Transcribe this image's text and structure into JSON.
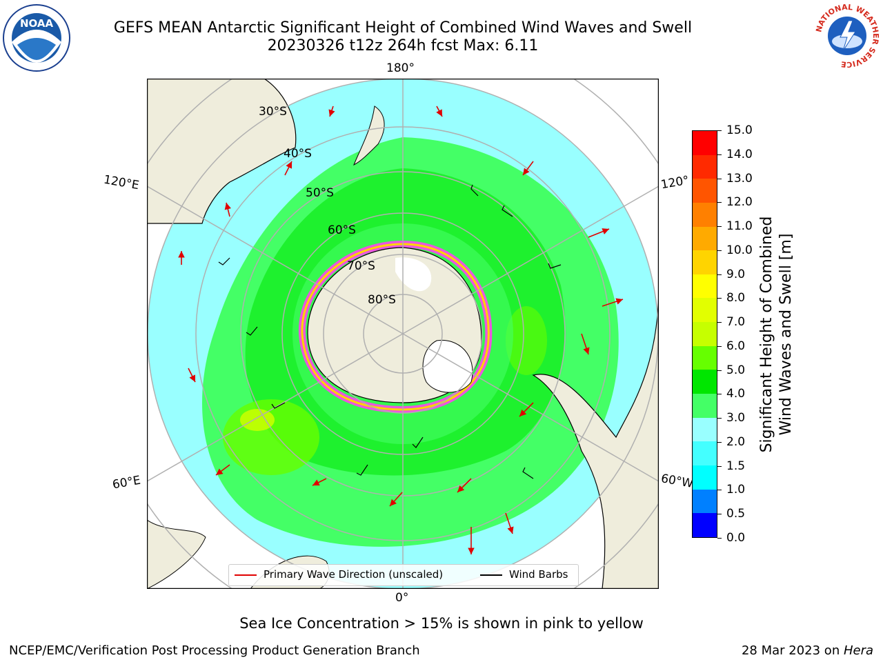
{
  "header": {
    "title_line1": "GEFS MEAN Antarctic Significant Height of Combined Wind Waves and Swell",
    "title_line2": "20230326 t12z 264h fcst   Max: 6.11"
  },
  "map": {
    "lon_labels": {
      "top": "180°",
      "bottom": "0°",
      "left_upper": "120°E",
      "left_lower": "60°E",
      "right_upper": "120°",
      "right_lower": "60°W"
    },
    "lat_labels": [
      "30°S",
      "40°S",
      "50°S",
      "60°S",
      "70°S",
      "80°S"
    ]
  },
  "legend": {
    "primary_wave": "Primary Wave Direction (unscaled)",
    "wind_barbs": "Wind Barbs"
  },
  "colorbar": {
    "label_line1": "Significant Height of Combined",
    "label_line2": "Wind Waves and Swell [m]",
    "ticks": [
      "15.0",
      "14.0",
      "13.0",
      "12.0",
      "11.0",
      "10.0",
      "9.0",
      "8.0",
      "7.0",
      "6.0",
      "5.0",
      "4.0",
      "3.0",
      "2.0",
      "1.5",
      "1.0",
      "0.5",
      "0.0"
    ],
    "colors": [
      "#ff0000",
      "#ff2a00",
      "#ff5500",
      "#ff8000",
      "#ffaa00",
      "#ffd400",
      "#ffff00",
      "#e2ff00",
      "#c6ff00",
      "#66ff00",
      "#00e600",
      "#44ff66",
      "#99ffff",
      "#44ffff",
      "#00ffff",
      "#0080ff",
      "#0000ff"
    ]
  },
  "notes": {
    "sea_ice": "Sea Ice Concentration > 15% is shown in pink to yellow"
  },
  "footer": {
    "left": "NCEP/EMC/Verification Post Processing Product Generation Branch",
    "right_date": "28 Mar 2023 on ",
    "right_host": "Hera"
  },
  "logos": {
    "noaa_text": "NOAA",
    "nws_text": "NATIONAL WEATHER SERVICE"
  }
}
